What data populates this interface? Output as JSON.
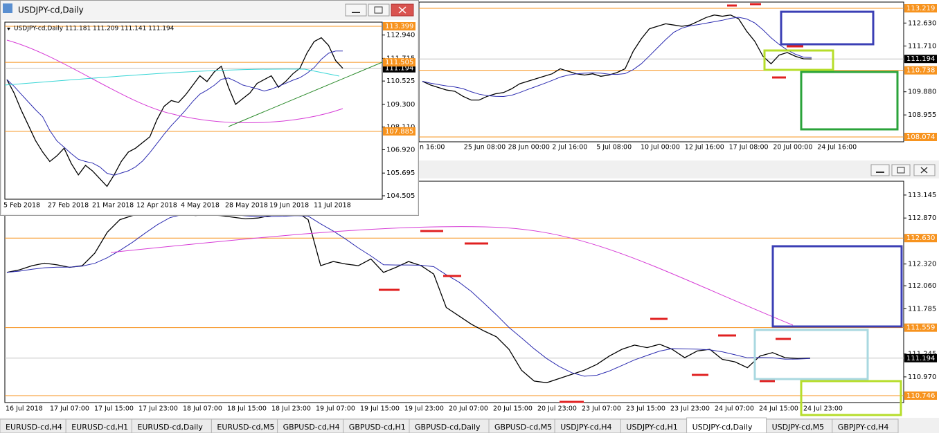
{
  "level_color": "#f7931e",
  "windows": [
    {
      "price_labels": [
        {
          "value": 112.63,
          "label": "112.630"
        },
        {
          "value": 111.71,
          "label": "111.710"
        },
        {
          "value": 109.88,
          "label": "109.880"
        },
        {
          "value": 108.955,
          "label": "108.955"
        }
      ],
      "levels": [
        {
          "value": 113.219,
          "label": "113.219"
        },
        {
          "value": 110.738,
          "label": "110.738"
        },
        {
          "value": 108.074,
          "label": "108.074"
        }
      ],
      "current": {
        "value": 111.194,
        "label": "111.194"
      },
      "ylim": [
        107.88,
        113.468
      ],
      "time_labels": [
        "n 16:00",
        "25 Jun 08:00",
        "28 Jun 00:00",
        "2 Jul 16:00",
        "5 Jul 08:00",
        "10 Jul 00:00",
        "12 Jul 16:00",
        "17 Jul 08:00",
        "20 Jul 00:00",
        "24 Jul 16:00"
      ],
      "closes": [
        110.3,
        110.15,
        110.05,
        109.95,
        109.9,
        109.7,
        109.55,
        109.55,
        109.7,
        109.8,
        109.85,
        110.0,
        110.2,
        110.3,
        110.4,
        110.5,
        110.6,
        110.8,
        110.7,
        110.6,
        110.55,
        110.6,
        110.5,
        110.55,
        110.65,
        110.8,
        111.5,
        112.0,
        112.4,
        112.5,
        112.6,
        112.55,
        112.5,
        112.55,
        112.7,
        112.85,
        112.95,
        112.9,
        112.95,
        112.8,
        112.3,
        111.9,
        111.3,
        111.0,
        111.35,
        111.45,
        111.3,
        111.2,
        111.194
      ]
    },
    {
      "price_labels": [
        {
          "value": 113.145,
          "label": "113.145"
        },
        {
          "value": 112.87,
          "label": "112.870"
        },
        {
          "value": 112.32,
          "label": "112.320"
        },
        {
          "value": 112.06,
          "label": "112.060"
        },
        {
          "value": 111.785,
          "label": "111.785"
        },
        {
          "value": 111.245,
          "label": "111.245"
        },
        {
          "value": 110.97,
          "label": "110.970"
        }
      ],
      "levels": [
        {
          "value": 112.63,
          "label": "112.630"
        },
        {
          "value": 111.559,
          "label": "111.559"
        },
        {
          "value": 110.746,
          "label": "110.746"
        }
      ],
      "current": {
        "value": 111.194,
        "label": "111.194"
      },
      "ylim": [
        110.663,
        113.31
      ],
      "time_labels": [
        "16 Jul 2018",
        "17 Jul 07:00",
        "17 Jul 15:00",
        "17 Jul 23:00",
        "18 Jul 07:00",
        "18 Jul 15:00",
        "18 Jul 23:00",
        "19 Jul 07:00",
        "19 Jul 15:00",
        "19 Jul 23:00",
        "20 Jul 07:00",
        "20 Jul 15:00",
        "20 Jul 23:00",
        "23 Jul 07:00",
        "23 Jul 15:00",
        "23 Jul 23:00",
        "24 Jul 07:00",
        "24 Jul 15:00",
        "24 Jul 23:00"
      ],
      "closes": [
        112.22,
        112.25,
        112.3,
        112.33,
        112.31,
        112.28,
        112.3,
        112.45,
        112.7,
        112.85,
        112.9,
        112.93,
        112.92,
        112.95,
        112.93,
        112.9,
        112.91,
        112.9,
        112.88,
        112.86,
        112.87,
        112.9,
        112.93,
        112.95,
        112.85,
        112.3,
        112.35,
        112.32,
        112.3,
        112.38,
        112.22,
        112.28,
        112.35,
        112.3,
        112.2,
        111.8,
        111.7,
        111.6,
        111.52,
        111.45,
        111.3,
        111.05,
        110.92,
        110.9,
        110.95,
        111.0,
        111.05,
        111.12,
        111.22,
        111.3,
        111.35,
        111.32,
        111.36,
        111.3,
        111.2,
        111.28,
        111.3,
        111.18,
        111.15,
        111.08,
        111.22,
        111.26,
        111.2,
        111.19,
        111.194
      ]
    },
    {
      "title": "USDJPY-cd,Daily",
      "info": "USDJPY-cd,Daily  111.181 111.209 111.141 111.194",
      "price_labels": [
        {
          "value": 112.94,
          "label": "112.940"
        },
        {
          "value": 111.715,
          "label": "111.715"
        },
        {
          "value": 110.525,
          "label": "110.525"
        },
        {
          "value": 109.3,
          "label": "109.300"
        },
        {
          "value": 108.11,
          "label": "108.110"
        },
        {
          "value": 106.92,
          "label": "106.920"
        },
        {
          "value": 105.695,
          "label": "105.695"
        },
        {
          "value": 104.505,
          "label": "104.505"
        }
      ],
      "levels": [
        {
          "value": 113.399,
          "label": "113.399"
        },
        {
          "value": 111.505,
          "label": "111.505"
        },
        {
          "value": 107.885,
          "label": "107.885"
        }
      ],
      "current": {
        "value": 111.194,
        "label": "111.194"
      },
      "ylim": [
        104.323,
        113.617
      ],
      "time_labels": [
        "5 Feb 2018",
        "27 Feb 2018",
        "21 Mar 2018",
        "12 Apr 2018",
        "4 May 2018",
        "28 May 2018",
        "19 Jun 2018",
        "11 Jul 2018"
      ],
      "closes": [
        110.6,
        109.9,
        109.0,
        108.2,
        107.4,
        106.8,
        106.3,
        106.6,
        107.0,
        106.2,
        105.6,
        106.1,
        105.8,
        105.4,
        105.0,
        105.6,
        106.3,
        106.8,
        107.0,
        107.3,
        107.6,
        108.5,
        109.2,
        109.5,
        109.4,
        109.8,
        110.3,
        110.8,
        110.5,
        111.0,
        111.3,
        110.2,
        109.3,
        109.6,
        109.9,
        110.4,
        110.6,
        110.8,
        110.2,
        110.5,
        110.9,
        111.2,
        112.0,
        112.6,
        112.8,
        112.4,
        111.6,
        111.194
      ]
    }
  ],
  "tabs": [
    "EURUSD-cd,H4",
    "EURUSD-cd,H1",
    "EURUSD-cd,Daily",
    "EURUSD-cd,M5",
    "GBPUSD-cd,H4",
    "GBPUSD-cd,H1",
    "GBPUSD-cd,Daily",
    "GBPUSD-cd,M5",
    "USDJPY-cd,H4",
    "USDJPY-cd,H1",
    "USDJPY-cd,Daily",
    "USDJPY-cd,M5",
    "GBPJPY-cd,H4"
  ]
}
